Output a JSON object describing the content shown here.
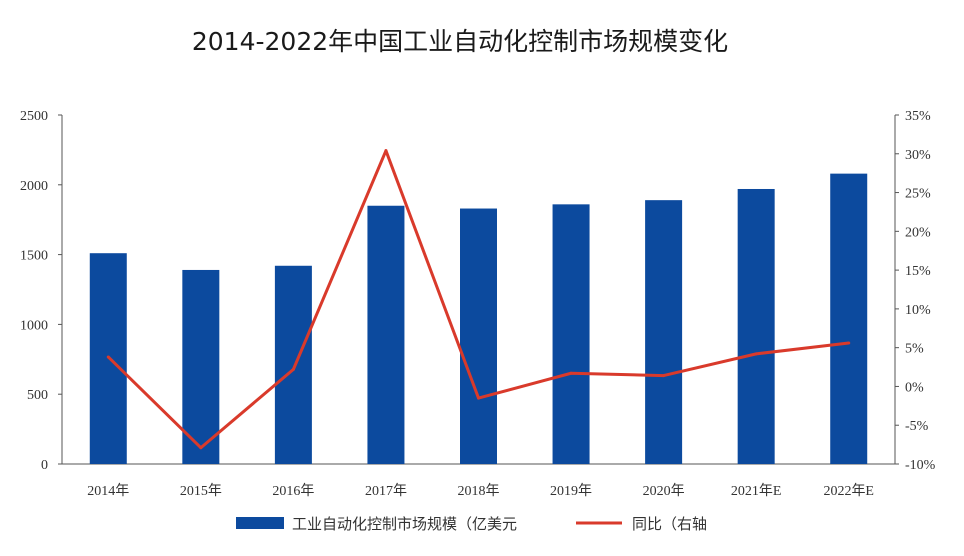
{
  "chart_data": {
    "type": "bar",
    "title": "2014-2022年中国工业自动化控制市场规模变化",
    "categories": [
      "2014年",
      "2015年",
      "2016年",
      "2017年",
      "2018年",
      "2019年",
      "2020年",
      "2021年E",
      "2022年E"
    ],
    "series": [
      {
        "name": "工业自动化控制市场规模（亿美元",
        "type": "bar",
        "axis": "left",
        "color": "#0c4a9e",
        "values": [
          1510,
          1390,
          1420,
          1850,
          1830,
          1860,
          1890,
          1970,
          2080
        ]
      },
      {
        "name": "同比（右轴",
        "type": "line",
        "axis": "right",
        "color": "#d93a2b",
        "values": [
          3.8,
          -7.9,
          2.2,
          30.4,
          -1.5,
          1.7,
          1.4,
          4.2,
          5.6
        ]
      }
    ],
    "y_left": {
      "ylim": [
        0,
        2500
      ],
      "ticks": [
        "0",
        "500",
        "1000",
        "1500",
        "2000",
        "2500"
      ]
    },
    "y_right": {
      "ylim": [
        -10,
        35
      ],
      "ticks": [
        "-10%",
        "-5%",
        "0%",
        "5%",
        "10%",
        "15%",
        "20%",
        "25%",
        "30%",
        "35%"
      ]
    },
    "legend_position": "bottom"
  }
}
